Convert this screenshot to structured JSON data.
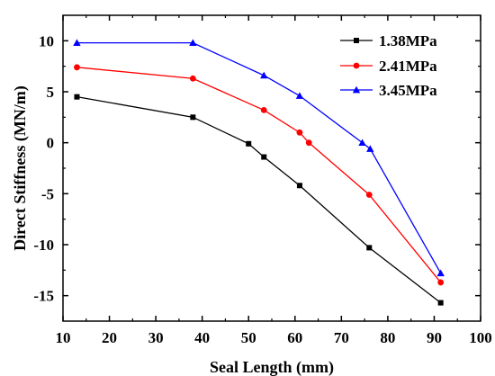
{
  "chart_data": {
    "type": "line",
    "xlabel": "Seal Length (mm)",
    "ylabel": "Direct Stiffness (MN/m)",
    "xlim": [
      10,
      100
    ],
    "ylim": [
      -17.5,
      12.5
    ],
    "xticks": [
      "10",
      "20",
      "30",
      "40",
      "50",
      "60",
      "70",
      "80",
      "90",
      "100"
    ],
    "yticks": [
      "10",
      "5",
      "0",
      "-5",
      "-10",
      "-15"
    ],
    "grid": false,
    "legend_position": "top-right",
    "series": [
      {
        "name": "1.38MPa",
        "color": "#000000",
        "marker": "square",
        "x": [
          13,
          38,
          50,
          53.3,
          61,
          76,
          91.4
        ],
        "y": [
          4.5,
          2.5,
          -0.1,
          -1.4,
          -4.2,
          -10.3,
          -15.7
        ]
      },
      {
        "name": "2.41MPa",
        "color": "#ff0000",
        "marker": "circle",
        "x": [
          13,
          38,
          53.3,
          61,
          63,
          76,
          91.4
        ],
        "y": [
          7.4,
          6.3,
          3.2,
          1.0,
          0.0,
          -5.1,
          -13.7
        ]
      },
      {
        "name": "3.45MPa",
        "color": "#0000ff",
        "marker": "triangle",
        "x": [
          13,
          38,
          53.3,
          61,
          74.5,
          76.2,
          91.4
        ],
        "y": [
          9.8,
          9.8,
          6.6,
          4.6,
          0.0,
          -0.6,
          -12.8
        ]
      }
    ]
  }
}
